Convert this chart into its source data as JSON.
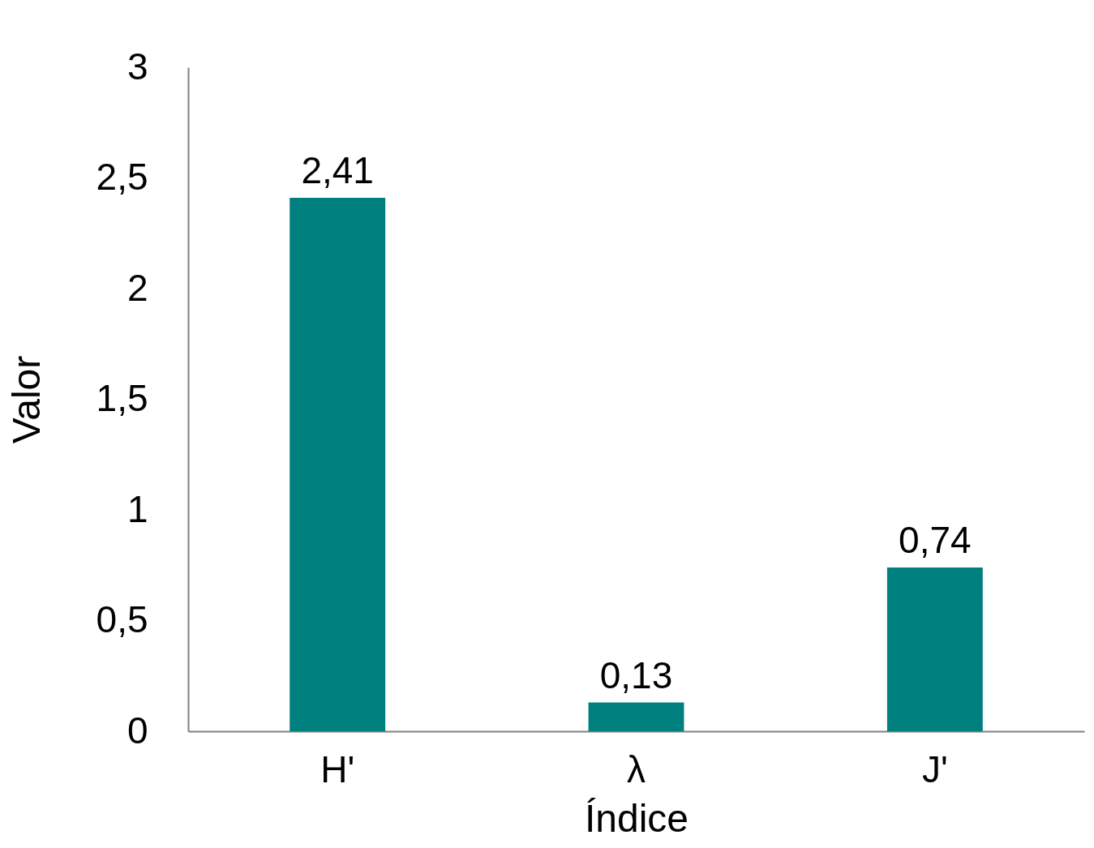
{
  "chart_data": {
    "type": "bar",
    "xlabel": "Índice",
    "ylabel": "Valor",
    "categories": [
      "H'",
      "λ",
      "J'"
    ],
    "values": [
      2.41,
      0.13,
      0.74
    ],
    "value_labels": [
      "2,41",
      "0,13",
      "0,74"
    ],
    "color": "#007f7f",
    "ylim": [
      0,
      3
    ],
    "yticks": [
      0,
      {
        "value": 0.5,
        "label": "0,5"
      },
      1,
      {
        "value": 1.5,
        "label": "1,5"
      },
      2,
      {
        "value": 2.5,
        "label": "2,5"
      },
      3
    ],
    "grid": false
  }
}
